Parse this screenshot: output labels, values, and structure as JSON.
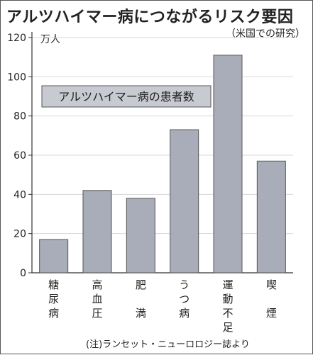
{
  "title": "アルツハイマー病につながるリスク要因",
  "subtitle": "（米国での研究）",
  "unit_label": "万人",
  "note": "(注)ランセット・ニューロロジー誌より",
  "colors": {
    "bar": "#a9adb9",
    "bar_border": "#555555",
    "legend_box": "#c7cad1",
    "axis": "#333333",
    "grid": "#d8d8d8"
  },
  "chart_data": {
    "type": "bar",
    "categories": [
      "糖尿病",
      "高血圧",
      "肥満",
      "うつ病",
      "運動不足",
      "喫煙"
    ],
    "category_lines": [
      [
        "糖",
        "尿",
        "病"
      ],
      [
        "高",
        "血",
        "圧"
      ],
      [
        "肥",
        "",
        "満"
      ],
      [
        "う",
        "つ",
        "病"
      ],
      [
        "運",
        "動",
        "不",
        "足"
      ],
      [
        "喫",
        "",
        "煙"
      ]
    ],
    "series": [
      {
        "name": "アルツハイマー病の患者数",
        "values": [
          17,
          42,
          38,
          73,
          111,
          57
        ]
      }
    ],
    "ylim": [
      0,
      120
    ],
    "yticks": [
      0,
      20,
      40,
      60,
      80,
      100,
      120
    ],
    "legend": "top-left",
    "grid": true
  }
}
